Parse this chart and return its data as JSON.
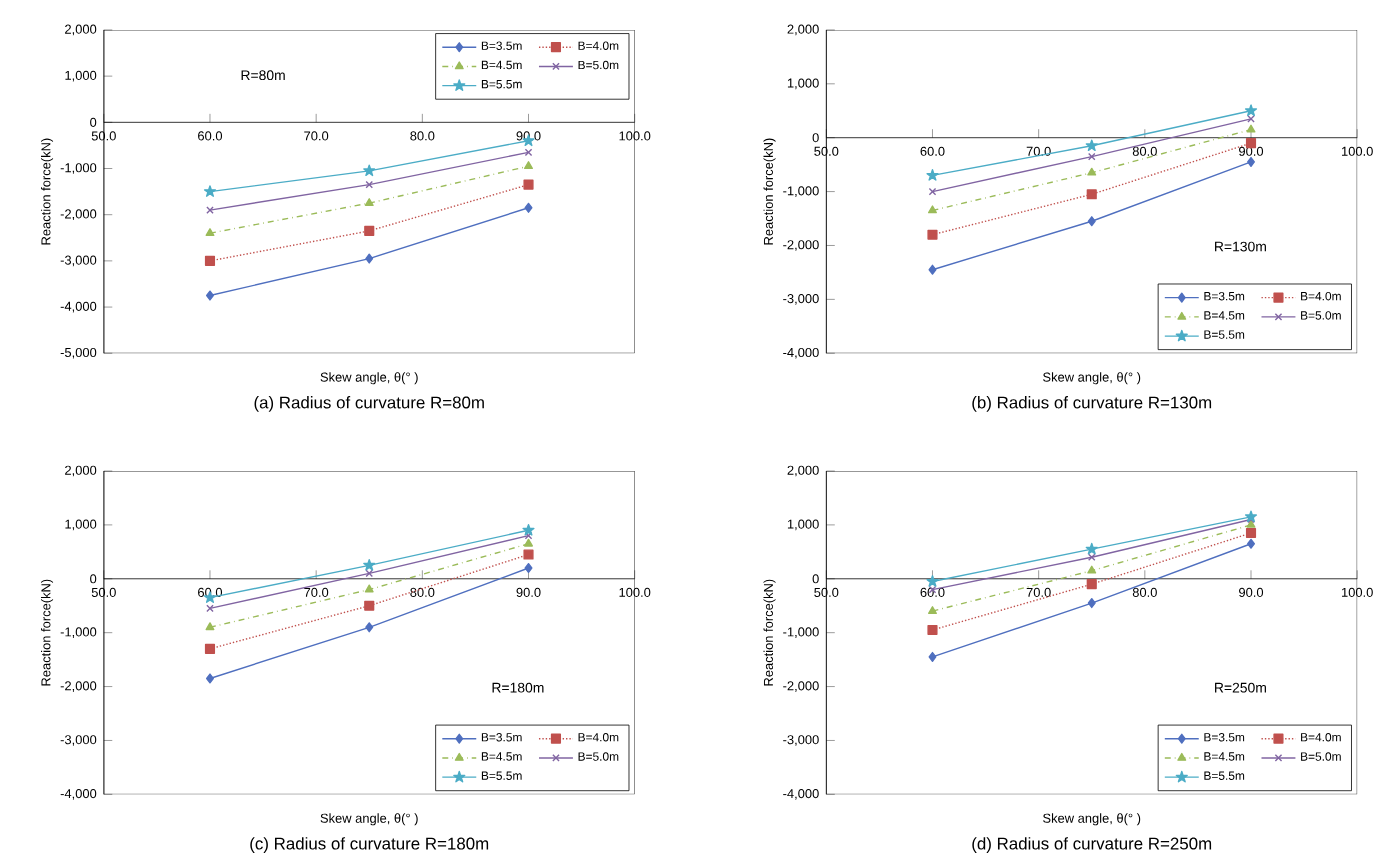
{
  "chart_data": [
    {
      "type": "line",
      "title": "(a)  Radius  of  curvature  R=80m",
      "xlabel": "Skew angle, θ(°  )",
      "ylabel": "Reaction force(kN)",
      "annotations": [
        "R=80m"
      ],
      "x": [
        60,
        75,
        90
      ],
      "xlim": [
        50,
        100
      ],
      "ylim": [
        -5000,
        2000
      ],
      "xticks": [
        {
          "value": 50,
          "label": "50.0"
        },
        {
          "value": 60,
          "label": "60.0"
        },
        {
          "value": 70,
          "label": "70.0"
        },
        {
          "value": 80,
          "label": "80.0"
        },
        {
          "value": 90,
          "label": "90.0"
        },
        {
          "value": 100,
          "label": "100.0"
        }
      ],
      "yticks": [
        {
          "value": -5000,
          "label": "-5,000"
        },
        {
          "value": -4000,
          "label": "-4,000"
        },
        {
          "value": -3000,
          "label": "-3,000"
        },
        {
          "value": -2000,
          "label": "-2,000"
        },
        {
          "value": -1000,
          "label": "-1,000"
        },
        0,
        {
          "value": 1000,
          "label": "1,000"
        },
        {
          "value": 2000,
          "label": "2,000"
        }
      ],
      "legend": "top right",
      "grid": false,
      "series": [
        {
          "name": "B=3.5m",
          "color": "#4f6fbf",
          "marker": "diamond",
          "line_style": "solid",
          "values": [
            -3750,
            -2950,
            -1850
          ]
        },
        {
          "name": "B=4.0m",
          "color": "#c0504d",
          "marker": "square",
          "line_style": "dotted",
          "values": [
            -3000,
            -2350,
            -1350
          ]
        },
        {
          "name": "B=4.5m",
          "color": "#9bbb59",
          "marker": "triangle",
          "line_style": "dashdot",
          "values": [
            -2400,
            -1750,
            -950
          ]
        },
        {
          "name": "B=5.0m",
          "color": "#8064a2",
          "marker": "cross",
          "line_style": "solid",
          "values": [
            -1900,
            -1350,
            -650
          ]
        },
        {
          "name": "B=5.5m",
          "color": "#4bacc6",
          "marker": "star",
          "line_style": "solid",
          "values": [
            -1500,
            -1050,
            -400
          ]
        }
      ]
    },
    {
      "type": "line",
      "title": "(b)  Radius  of  curvature  R=130m",
      "xlabel": "Skew angle, θ(°  )",
      "ylabel": "Reaction force(kN)",
      "annotations": [
        "R=130m"
      ],
      "x": [
        60,
        75,
        90
      ],
      "xlim": [
        50,
        100
      ],
      "ylim": [
        -4000,
        2000
      ],
      "xticks": [
        {
          "value": 50,
          "label": "50.0"
        },
        {
          "value": 60,
          "label": "60.0"
        },
        {
          "value": 70,
          "label": "70.0"
        },
        {
          "value": 80,
          "label": "80.0"
        },
        {
          "value": 90,
          "label": "90.0"
        },
        {
          "value": 100,
          "label": "100.0"
        }
      ],
      "yticks": [
        {
          "value": -4000,
          "label": "-4,000"
        },
        {
          "value": -3000,
          "label": "-3,000"
        },
        {
          "value": -2000,
          "label": "-2,000"
        },
        {
          "value": -1000,
          "label": "-1,000"
        },
        0,
        {
          "value": 1000,
          "label": "1,000"
        },
        {
          "value": 2000,
          "label": "2,000"
        }
      ],
      "legend": "bottom right",
      "grid": false,
      "series": [
        {
          "name": "B=3.5m",
          "color": "#4f6fbf",
          "marker": "diamond",
          "line_style": "solid",
          "values": [
            -2450,
            -1550,
            -450
          ]
        },
        {
          "name": "B=4.0m",
          "color": "#c0504d",
          "marker": "square",
          "line_style": "dotted",
          "values": [
            -1800,
            -1050,
            -100
          ]
        },
        {
          "name": "B=4.5m",
          "color": "#9bbb59",
          "marker": "triangle",
          "line_style": "dashdot",
          "values": [
            -1350,
            -650,
            150
          ]
        },
        {
          "name": "B=5.0m",
          "color": "#8064a2",
          "marker": "cross",
          "line_style": "solid",
          "values": [
            -1000,
            -350,
            350
          ]
        },
        {
          "name": "B=5.5m",
          "color": "#4bacc6",
          "marker": "star",
          "line_style": "solid",
          "values": [
            -700,
            -150,
            500
          ]
        }
      ]
    },
    {
      "type": "line",
      "title": "(c)  Radius  of  curvature  R=180m",
      "xlabel": "Skew angle, θ(°  )",
      "ylabel": "Reaction force(kN)",
      "annotations": [
        "R=180m"
      ],
      "x": [
        60,
        75,
        90
      ],
      "xlim": [
        50,
        100
      ],
      "ylim": [
        -4000,
        2000
      ],
      "xticks": [
        {
          "value": 50,
          "label": "50.0"
        },
        {
          "value": 60,
          "label": "60.0"
        },
        {
          "value": 70,
          "label": "70.0"
        },
        {
          "value": 80,
          "label": "80.0"
        },
        {
          "value": 90,
          "label": "90.0"
        },
        {
          "value": 100,
          "label": "100.0"
        }
      ],
      "yticks": [
        {
          "value": -4000,
          "label": "-4,000"
        },
        {
          "value": -3000,
          "label": "-3,000"
        },
        {
          "value": -2000,
          "label": "-2,000"
        },
        {
          "value": -1000,
          "label": "-1,000"
        },
        0,
        {
          "value": 1000,
          "label": "1,000"
        },
        {
          "value": 2000,
          "label": "2,000"
        }
      ],
      "legend": "bottom right",
      "grid": false,
      "series": [
        {
          "name": "B=3.5m",
          "color": "#4f6fbf",
          "marker": "diamond",
          "line_style": "solid",
          "values": [
            -1850,
            -900,
            200
          ]
        },
        {
          "name": "B=4.0m",
          "color": "#c0504d",
          "marker": "square",
          "line_style": "dotted",
          "values": [
            -1300,
            -500,
            450
          ]
        },
        {
          "name": "B=4.5m",
          "color": "#9bbb59",
          "marker": "triangle",
          "line_style": "dashdot",
          "values": [
            -900,
            -200,
            650
          ]
        },
        {
          "name": "B=5.0m",
          "color": "#8064a2",
          "marker": "cross",
          "line_style": "solid",
          "values": [
            -550,
            100,
            800
          ]
        },
        {
          "name": "B=5.5m",
          "color": "#4bacc6",
          "marker": "star",
          "line_style": "solid",
          "values": [
            -350,
            250,
            900
          ]
        }
      ]
    },
    {
      "type": "line",
      "title": "(d)  Radius  of  curvature  R=250m",
      "xlabel": "Skew angle, θ(°  )",
      "ylabel": "Reaction force(kN)",
      "annotations": [
        "R=250m"
      ],
      "x": [
        60,
        75,
        90
      ],
      "xlim": [
        50,
        100
      ],
      "ylim": [
        -4000,
        2000
      ],
      "xticks": [
        {
          "value": 50,
          "label": "50.0"
        },
        {
          "value": 60,
          "label": "60.0"
        },
        {
          "value": 70,
          "label": "70.0"
        },
        {
          "value": 80,
          "label": "80.0"
        },
        {
          "value": 90,
          "label": "90.0"
        },
        {
          "value": 100,
          "label": "100.0"
        }
      ],
      "yticks": [
        {
          "value": -4000,
          "label": "-4,000"
        },
        {
          "value": -3000,
          "label": "-3,000"
        },
        {
          "value": -2000,
          "label": "-2,000"
        },
        {
          "value": -1000,
          "label": "-1,000"
        },
        0,
        {
          "value": 1000,
          "label": "1,000"
        },
        {
          "value": 2000,
          "label": "2,000"
        }
      ],
      "legend": "bottom right",
      "grid": false,
      "series": [
        {
          "name": "B=3.5m",
          "color": "#4f6fbf",
          "marker": "diamond",
          "line_style": "solid",
          "values": [
            -1450,
            -450,
            650
          ]
        },
        {
          "name": "B=4.0m",
          "color": "#c0504d",
          "marker": "square",
          "line_style": "dotted",
          "values": [
            -950,
            -100,
            850
          ]
        },
        {
          "name": "B=4.5m",
          "color": "#9bbb59",
          "marker": "triangle",
          "line_style": "dashdot",
          "values": [
            -600,
            150,
            1000
          ]
        },
        {
          "name": "B=5.0m",
          "color": "#8064a2",
          "marker": "cross",
          "line_style": "solid",
          "values": [
            -200,
            400,
            1100
          ]
        },
        {
          "name": "B=5.5m",
          "color": "#4bacc6",
          "marker": "star",
          "line_style": "solid",
          "values": [
            -50,
            550,
            1150
          ]
        }
      ]
    }
  ]
}
